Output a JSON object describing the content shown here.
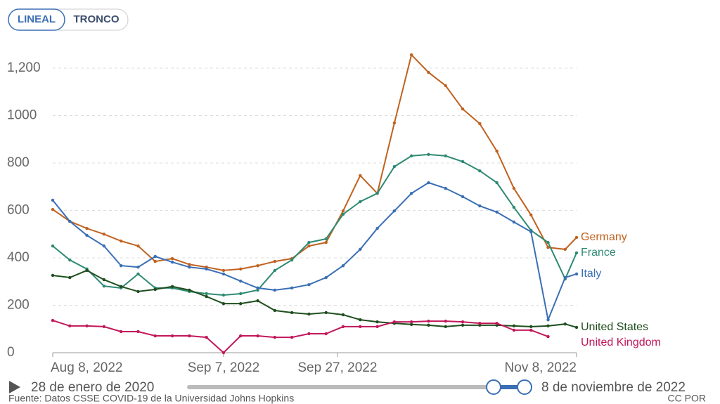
{
  "controls": {
    "tabs": [
      "LINEAL",
      "TRONCO"
    ],
    "active": "LINEAL"
  },
  "slider": {
    "start": "28 de enero de 2020",
    "end": "8 de noviembre de 2022"
  },
  "footer": {
    "source": "Fuente: Datos CSSE COVID-19 de la Universidad Johns Hopkins",
    "license": "CC POR"
  },
  "chart_data": {
    "type": "line",
    "x": [
      "2022-08-08",
      "2022-08-11",
      "2022-08-14",
      "2022-08-17",
      "2022-08-20",
      "2022-08-23",
      "2022-08-26",
      "2022-08-29",
      "2022-09-01",
      "2022-09-04",
      "2022-09-07",
      "2022-09-10",
      "2022-09-13",
      "2022-09-16",
      "2022-09-19",
      "2022-09-22",
      "2022-09-25",
      "2022-09-28",
      "2022-10-01",
      "2022-10-04",
      "2022-10-07",
      "2022-10-10",
      "2022-10-13",
      "2022-10-16",
      "2022-10-19",
      "2022-10-22",
      "2022-10-25",
      "2022-10-28",
      "2022-10-31",
      "2022-11-03",
      "2022-11-06",
      "2022-11-08"
    ],
    "xlim": [
      "2022-08-08",
      "2022-11-08"
    ],
    "xticks": [
      {
        "value": "2022-08-08",
        "label": "Aug 8, 2022"
      },
      {
        "value": "2022-09-07",
        "label": "Sep 7, 2022"
      },
      {
        "value": "2022-09-27",
        "label": "Sep 27, 2022"
      },
      {
        "value": "2022-11-08",
        "label": "Nov 8, 2022"
      }
    ],
    "ylim": [
      0,
      1200
    ],
    "yticks": [
      0,
      200,
      400,
      600,
      800,
      1000,
      {
        "value": 1200,
        "label": "1,200"
      }
    ],
    "grid": true,
    "series": [
      {
        "name": "Germany",
        "color": "#c0621f",
        "values": [
          604,
          554,
          524,
          500,
          471,
          450,
          385,
          397,
          372,
          361,
          347,
          353,
          367,
          385,
          397,
          450,
          465,
          598,
          747,
          672,
          969,
          1256,
          1182,
          1126,
          1028,
          966,
          850,
          693,
          581,
          444,
          436,
          486
        ]
      },
      {
        "name": "France",
        "color": "#2e8a72",
        "values": [
          450,
          391,
          353,
          281,
          273,
          332,
          273,
          273,
          258,
          249,
          243,
          249,
          264,
          347,
          391,
          465,
          480,
          584,
          637,
          672,
          785,
          830,
          836,
          830,
          806,
          767,
          717,
          613,
          516,
          465,
          311,
          421
        ]
      },
      {
        "name": "Italy",
        "color": "#3a6fb5",
        "values": [
          643,
          554,
          495,
          450,
          367,
          361,
          406,
          382,
          361,
          353,
          332,
          302,
          273,
          264,
          273,
          287,
          317,
          367,
          436,
          524,
          598,
          672,
          717,
          693,
          658,
          619,
          593,
          551,
          510,
          139,
          317,
          332
        ]
      },
      {
        "name": "United States",
        "color": "#1f4e1f",
        "values": [
          326,
          317,
          347,
          308,
          279,
          258,
          267,
          279,
          264,
          237,
          207,
          207,
          219,
          178,
          169,
          163,
          169,
          160,
          139,
          130,
          124,
          119,
          116,
          110,
          116,
          116,
          116,
          113,
          110,
          113,
          121,
          107
        ]
      },
      {
        "name": "United Kingdom",
        "color": "#c2185b",
        "values": [
          136,
          113,
          113,
          110,
          89,
          89,
          71,
          71,
          71,
          65,
          0,
          71,
          71,
          65,
          65,
          80,
          80,
          110,
          110,
          110,
          130,
          130,
          133,
          133,
          130,
          124,
          124,
          95,
          95,
          68,
          null,
          null
        ]
      }
    ]
  }
}
